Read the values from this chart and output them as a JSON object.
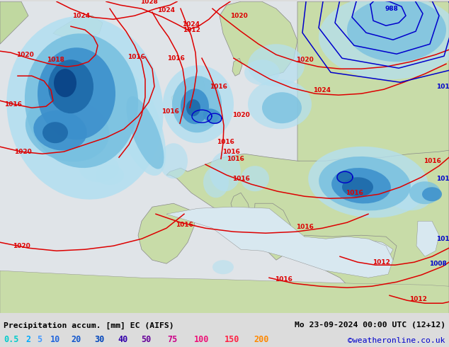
{
  "title_left": "Precipitation accum. [mm] EC (AIFS)",
  "title_right": "Mo 23-09-2024 00:00 UTC (12+12)",
  "credit": "©weatheronline.co.uk",
  "label_values": [
    "0.5",
    "2",
    "5",
    "10",
    "20",
    "30",
    "40",
    "50",
    "75",
    "100",
    "150",
    "200"
  ],
  "label_colors": [
    "#00cccc",
    "#00aaff",
    "#4499ff",
    "#2266dd",
    "#1155cc",
    "#0044bb",
    "#3300aa",
    "#660099",
    "#cc0088",
    "#ee1177",
    "#ff2244",
    "#ff8800"
  ],
  "figsize": [
    6.34,
    4.9
  ],
  "dpi": 100,
  "ocean_color": "#e8e8e8",
  "land_color_main": "#c8e0a8",
  "land_color_alt": "#b8d898",
  "precip_light": "#b4dff0",
  "precip_mid": "#78c0e0",
  "precip_dark": "#3c90cc",
  "precip_deeper": "#1e6aaa",
  "precip_core": "#0a4488",
  "isobar_red": "#dd0000",
  "isobar_blue": "#0000cc",
  "border_color": "#888888",
  "bottom_bg": "#dcdcdc",
  "bottom_text": "#000000"
}
